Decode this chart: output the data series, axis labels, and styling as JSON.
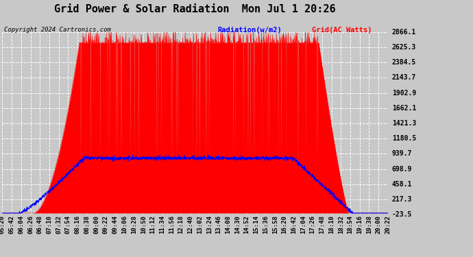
{
  "title": "Grid Power & Solar Radiation  Mon Jul 1 20:26",
  "copyright": "Copyright 2024 Cartronics.com",
  "legend_radiation": "Radiation(w/m2)",
  "legend_grid": "Grid(AC Watts)",
  "radiation_color": "blue",
  "grid_color": "red",
  "background_color": "#c8c8c8",
  "plot_bg_color": "#c8c8c8",
  "ymin": -23.5,
  "ymax": 2866.1,
  "yticks": [
    -23.5,
    217.3,
    458.1,
    698.9,
    939.7,
    1180.5,
    1421.3,
    1662.1,
    1902.9,
    2143.7,
    2384.5,
    2625.3,
    2866.1
  ],
  "xstart_minutes": 320,
  "xend_minutes": 1222,
  "xtick_interval_minutes": 22,
  "title_fontsize": 11,
  "tick_fontsize": 6.5,
  "copyright_fontsize": 6.5,
  "legend_fontsize": 7.5
}
